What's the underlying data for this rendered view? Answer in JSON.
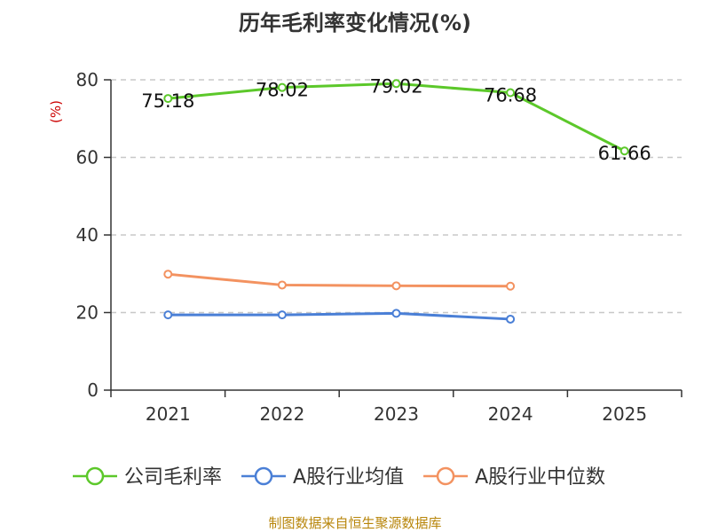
{
  "chart_data": {
    "type": "line",
    "title": "历年毛利率变化情况(%)",
    "ylabel": "(%)",
    "xlabel": "",
    "categories": [
      "2021",
      "2022",
      "2023",
      "2024",
      "2025"
    ],
    "ylim": [
      0,
      80
    ],
    "yticks": [
      0,
      20,
      40,
      60,
      80
    ],
    "grid": true,
    "legend_position": "bottom",
    "series": [
      {
        "name": "公司毛利率",
        "color": "#5cc82a",
        "values": [
          75.18,
          78.02,
          79.02,
          76.68,
          61.66
        ],
        "labels": [
          "75.18",
          "78.02",
          "79.02",
          "76.68",
          "61.66"
        ]
      },
      {
        "name": "A股行业均值",
        "color": "#4a7fd6",
        "values": [
          19.4,
          19.4,
          19.8,
          18.3,
          null
        ]
      },
      {
        "name": "A股行业中位数",
        "color": "#f39260",
        "values": [
          29.9,
          27.1,
          26.9,
          26.8,
          null
        ]
      }
    ]
  },
  "source": "制图数据来自恒生聚源数据库"
}
